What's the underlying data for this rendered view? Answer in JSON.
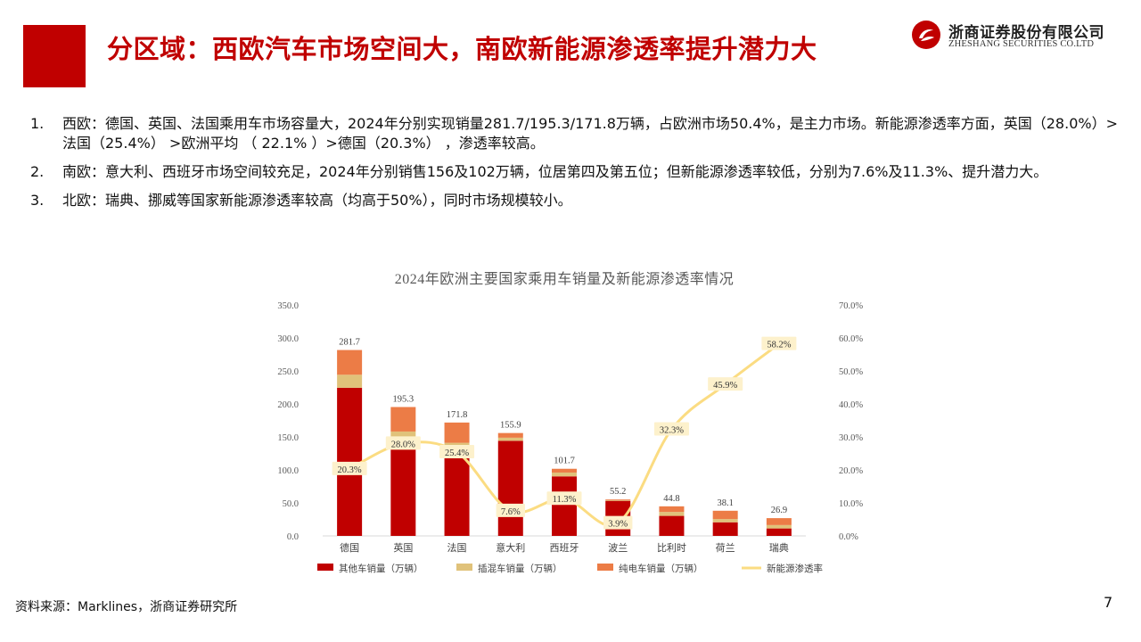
{
  "header": {
    "title": "分区域：西欧汽车市场空间大，南欧新能源渗透率提升潜力大",
    "logo_cn": "浙商证券股份有限公司",
    "logo_en": "ZHESHANG SECURITIES CO.LTD",
    "brand_color": "#c00000"
  },
  "bullets": [
    {
      "num": "1.",
      "text": "西欧：德国、英国、法国乘用车市场容量大，2024年分别实现销量281.7/195.3/171.8万辆，占欧洲市场50.4%，是主力市场。新能源渗透率方面，英国（28.0%）>法国（25.4%） >欧洲平均 （ 22.1% ）>德国（20.3%） ，渗透率较高。"
    },
    {
      "num": "2.",
      "text": "南欧：意大利、西班牙市场空间较充足，2024年分别销售156及102万辆，位居第四及第五位；但新能源渗透率较低，分别为7.6%及11.3%、提升潜力大。"
    },
    {
      "num": "3.",
      "text": "北欧：瑞典、挪威等国家新能源渗透率较高（均高于50%），同时市场规模较小。"
    }
  ],
  "footer": {
    "source": "资料来源：Marklines，浙商证券研究所",
    "page": "7"
  },
  "chart_data": {
    "type": "bar",
    "title": "2024年欧洲主要国家乘用车销量及新能源渗透率情况",
    "categories": [
      "德国",
      "英国",
      "法国",
      "意大利",
      "西班牙",
      "波兰",
      "比利时",
      "荷兰",
      "瑞典"
    ],
    "series": [
      {
        "name": "其他车销量（万辆）",
        "type": "bar",
        "stack": "sales",
        "axis": "left",
        "color": "#c00000",
        "values": [
          224.5,
          140.6,
          128.2,
          144.1,
          90.2,
          53.1,
          30.3,
          20.6,
          11.3
        ]
      },
      {
        "name": "插混车销量（万辆）",
        "type": "bar",
        "stack": "sales",
        "axis": "left",
        "color": "#e0c27a",
        "values": [
          19.7,
          17.6,
          12.9,
          4.7,
          5.8,
          1.0,
          6.0,
          4.9,
          5.1
        ]
      },
      {
        "name": "纯电车销量（万辆）",
        "type": "bar",
        "stack": "sales",
        "axis": "left",
        "color": "#ec7c46",
        "values": [
          37.5,
          37.1,
          30.7,
          7.1,
          5.7,
          1.1,
          8.5,
          12.6,
          10.5
        ]
      },
      {
        "name": "新能源渗透率",
        "type": "line",
        "axis": "right",
        "color": "#fbdc82",
        "values": [
          20.3,
          28.0,
          25.4,
          7.6,
          11.3,
          3.9,
          32.3,
          45.9,
          58.2
        ]
      }
    ],
    "total_labels": [
      "281.7",
      "195.3",
      "171.8",
      "155.9",
      "101.7",
      "55.2",
      "44.8",
      "38.1",
      "26.9"
    ],
    "rate_labels": [
      "20.3%",
      "28.0%",
      "25.4%",
      "7.6%",
      "11.3%",
      "3.9%",
      "32.3%",
      "45.9%",
      "58.2%"
    ],
    "left_axis": {
      "min": 0,
      "max": 350,
      "step": 50,
      "ticks": [
        "0.0",
        "50.0",
        "100.0",
        "150.0",
        "200.0",
        "250.0",
        "300.0",
        "350.0"
      ]
    },
    "right_axis": {
      "min": 0,
      "max": 70,
      "step": 10,
      "ticks": [
        "0.0%",
        "10.0%",
        "20.0%",
        "30.0%",
        "40.0%",
        "50.0%",
        "60.0%",
        "70.0%"
      ]
    },
    "legend_position": "bottom",
    "grid": false
  }
}
